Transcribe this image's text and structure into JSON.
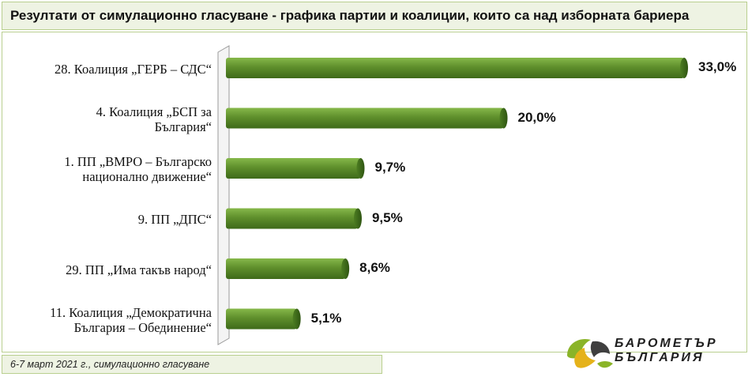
{
  "header": {
    "title": "Резултати от симулационно гласуване - графика партии и коалиции, които  са над изборната бариера"
  },
  "footer": {
    "note": "6-7 март 2021 г., симулационно гласуване"
  },
  "logo": {
    "line1": "БАРОМЕТЪР",
    "line2": "БЪЛГАРИЯ",
    "colors": [
      "#8ab428",
      "#e5b21a",
      "#3f3f3f"
    ]
  },
  "colors": {
    "bar": "#5f8f2c",
    "bar_dark": "#3e6a19",
    "bar_light": "#86b84a",
    "frame": "#b9cf8f",
    "header_bg": "#eef3e3"
  },
  "chart_data": {
    "type": "bar",
    "orientation": "horizontal",
    "categories": [
      [
        "28. Коалиция „ГЕРБ – СДС“"
      ],
      [
        "4. Коалиция „БСП за",
        "България“"
      ],
      [
        "1. ПП „ВМРО – Българско",
        "национално движение“"
      ],
      [
        "9. ПП „ДПС“"
      ],
      [
        "29. ПП „Има такъв народ“"
      ],
      [
        "11. Коалиция „Демократична",
        "България – Обединение“"
      ]
    ],
    "values": [
      33.0,
      20.0,
      9.7,
      9.5,
      8.6,
      5.1
    ],
    "value_labels": [
      "33,0%",
      "20,0%",
      "9,7%",
      "9,5%",
      "8,6%",
      "5,1%"
    ],
    "xlim": [
      0,
      33
    ],
    "grid": false,
    "legend": "none"
  }
}
